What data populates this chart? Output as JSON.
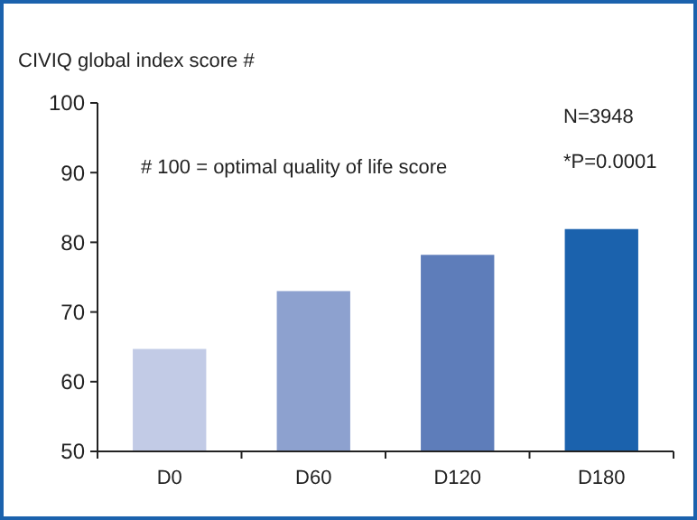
{
  "chart_data": {
    "type": "bar",
    "ylabel": "CIVIQ global index score #",
    "categories": [
      "D0",
      "D60",
      "D120",
      "D180"
    ],
    "values": [
      64.7,
      73.0,
      78.2,
      81.9
    ],
    "colors": [
      "#c2cbe6",
      "#8da1cf",
      "#5e7dba",
      "#1b62ad"
    ],
    "ylim": [
      50,
      100
    ],
    "yticks": [
      50,
      60,
      70,
      80,
      90,
      100
    ],
    "annotations": [
      "# 100 = optimal quality of life score",
      "N=3948",
      "*P=0.0001"
    ]
  }
}
